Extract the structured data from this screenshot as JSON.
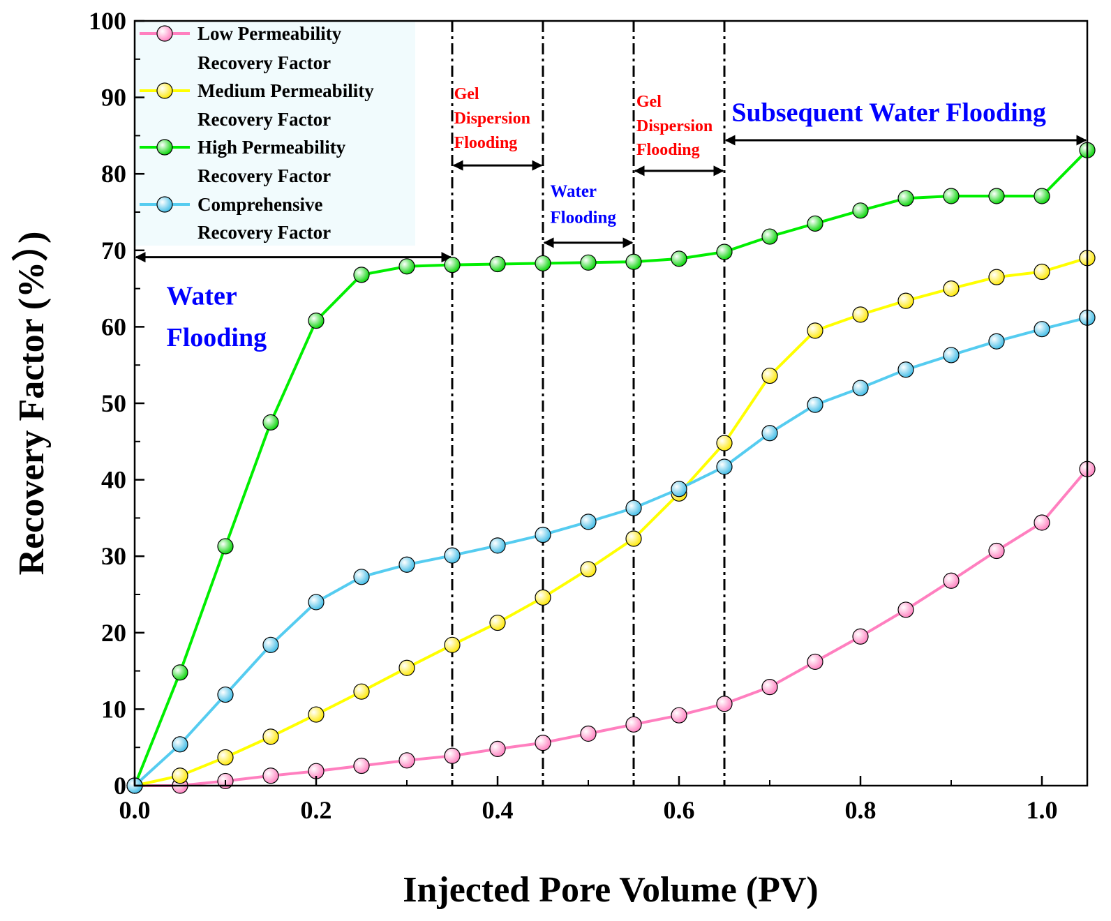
{
  "chart_data": {
    "type": "line",
    "xlabel": "Injected Pore Volume (PV)",
    "ylabel": "Recovery Factor (%）)",
    "xlim": [
      0,
      1.05
    ],
    "ylim": [
      0,
      100
    ],
    "xticks": [
      0.0,
      0.2,
      0.4,
      0.6,
      0.8,
      1.0
    ],
    "xtick_labels": [
      "0.0",
      "0.2",
      "0.4",
      "0.6",
      "0.8",
      "1.0"
    ],
    "yticks": [
      0,
      10,
      20,
      30,
      40,
      50,
      60,
      70,
      80,
      90,
      100
    ],
    "ytick_labels": [
      "0",
      "10",
      "20",
      "30",
      "40",
      "50",
      "60",
      "70",
      "80",
      "90",
      "100"
    ],
    "grid": false,
    "legend_position": "top-left",
    "x": [
      0,
      0.05,
      0.1,
      0.15,
      0.2,
      0.25,
      0.3,
      0.35,
      0.4,
      0.45,
      0.5,
      0.55,
      0.6,
      0.65,
      0.7,
      0.75,
      0.8,
      0.85,
      0.9,
      0.95,
      1.0,
      1.05
    ],
    "series": [
      {
        "name": "Low Permeability Recovery Factor",
        "legend_lines": [
          "Low Permeability",
          "Recovery Factor"
        ],
        "color": "#ff7fbf",
        "values": [
          0,
          0,
          0.6,
          1.3,
          1.9,
          2.6,
          3.3,
          3.9,
          4.8,
          5.6,
          6.8,
          8.0,
          9.2,
          10.7,
          12.9,
          16.2,
          19.5,
          23.0,
          26.8,
          30.7,
          34.4,
          41.4
        ]
      },
      {
        "name": "Medium Permeability Recovery Factor",
        "legend_lines": [
          "Medium Permeability",
          "Recovery Factor"
        ],
        "color": "#ffff00",
        "values": [
          0,
          1.3,
          3.7,
          6.4,
          9.3,
          12.3,
          15.4,
          18.4,
          21.3,
          24.6,
          28.3,
          32.3,
          38.2,
          44.8,
          53.6,
          59.5,
          61.6,
          63.4,
          65.0,
          66.5,
          67.2,
          69.0
        ]
      },
      {
        "name": "High Permeability Recovery Factor",
        "legend_lines": [
          "High Permeability",
          "Recovery Factor"
        ],
        "color": "#00ee00",
        "values": [
          0,
          14.8,
          31.3,
          47.5,
          60.8,
          66.8,
          67.9,
          68.1,
          68.2,
          68.3,
          68.4,
          68.5,
          68.9,
          69.8,
          71.8,
          73.5,
          75.2,
          76.8,
          77.1,
          77.1,
          77.1,
          83.1
        ]
      },
      {
        "name": "Comprehensive Recovery Factor",
        "legend_lines": [
          "Comprehensive",
          "Recovery Factor"
        ],
        "color": "#55ccf0",
        "values": [
          0,
          5.4,
          11.9,
          18.4,
          24.0,
          27.3,
          28.9,
          30.1,
          31.4,
          32.8,
          34.5,
          36.3,
          38.8,
          41.7,
          46.1,
          49.8,
          52.0,
          54.4,
          56.3,
          58.1,
          59.7,
          61.2
        ]
      }
    ],
    "stage_boundaries": [
      0.35,
      0.45,
      0.55,
      0.65
    ],
    "annotations": [
      {
        "id": "water-flooding-1",
        "lines": [
          "Water",
          "Flooding"
        ],
        "color": "#0000ff",
        "size": "large",
        "x": 0.035,
        "y": [
          62.9,
          57.5
        ],
        "arrow": [
          0,
          0.35
        ],
        "arrow_y": 69.1
      },
      {
        "id": "gel-dispersion-1",
        "lines": [
          "Gel",
          "Dispersion",
          "Flooding"
        ],
        "color": "#ff0000",
        "size": "small",
        "x": 0.352,
        "y": [
          89.8,
          86.6,
          83.4
        ],
        "arrow": [
          0.35,
          0.45
        ],
        "arrow_y": 81.1
      },
      {
        "id": "water-flooding-2",
        "lines": [
          "Water",
          "Flooding"
        ],
        "color": "#0000ff",
        "size": "medium",
        "x": 0.458,
        "y": [
          77.0,
          73.6
        ],
        "arrow": [
          0.45,
          0.55
        ],
        "arrow_y": 71.0
      },
      {
        "id": "gel-dispersion-2",
        "lines": [
          "Gel",
          "Dispersion",
          "Flooding"
        ],
        "color": "#ff0000",
        "size": "small",
        "x": 0.553,
        "y": [
          88.8,
          85.6,
          82.5
        ],
        "arrow": [
          0.55,
          0.65
        ],
        "arrow_y": 80.4
      },
      {
        "id": "subsequent-water-flooding",
        "lines": [
          "Subsequent Water Flooding"
        ],
        "color": "#0000ff",
        "size": "large",
        "x": 0.658,
        "y": [
          86.9
        ],
        "arrow": [
          0.65,
          1.05
        ],
        "arrow_y": 84.4
      }
    ]
  }
}
